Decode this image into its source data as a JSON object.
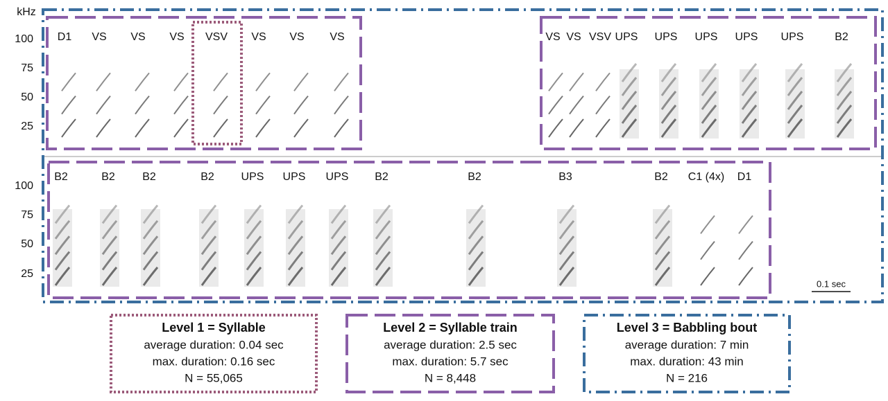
{
  "y_axis": {
    "unit": "kHz",
    "ticks": [
      100,
      75,
      50,
      25
    ]
  },
  "top_row": {
    "left": [
      "D1",
      "VS",
      "VS",
      "VS",
      "VSV",
      "VS",
      "VS",
      "VS"
    ],
    "right": [
      "VS",
      "VS",
      "VSV",
      "UPS",
      "UPS",
      "UPS",
      "UPS",
      "UPS",
      "B2"
    ]
  },
  "bottom_row": {
    "labels": [
      "B2",
      "B2",
      "B2",
      "B2",
      "UPS",
      "UPS",
      "UPS",
      "B2",
      "B2",
      "B3",
      "B2",
      "C1 (4x)",
      "D1"
    ]
  },
  "scale_bar": "0.1 sec",
  "levels": [
    {
      "title": "Level 1 = Syllable",
      "lines": [
        "average duration: 0.04 sec",
        "max. duration: 0.16 sec",
        "N = 55,065"
      ]
    },
    {
      "title": "Level 2 = Syllable train",
      "lines": [
        "average duration: 2.5 sec",
        "max. duration: 5.7 sec",
        "N = 8,448"
      ]
    },
    {
      "title": "Level 3 =  Babbling bout",
      "lines": [
        "average duration: 7 min",
        "max. duration: 43 min",
        "N = 216"
      ]
    }
  ]
}
